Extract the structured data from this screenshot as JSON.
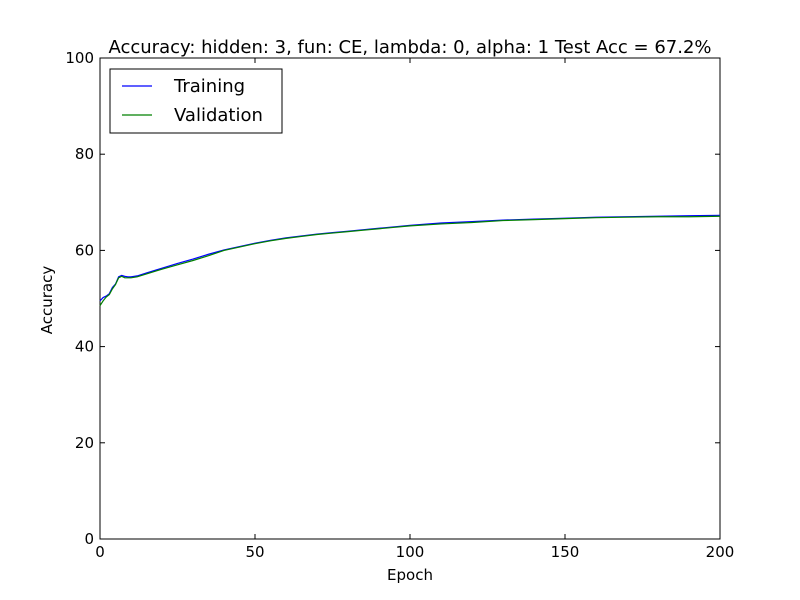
{
  "chart_data": {
    "type": "line",
    "title": "Accuracy: hidden: 3, fun: CE, lambda: 0, alpha: 1  Test Acc = 67.2%",
    "xlabel": "Epoch",
    "ylabel": "Accuracy",
    "xlim": [
      0,
      200
    ],
    "ylim": [
      0,
      100
    ],
    "xticks": [
      0,
      50,
      100,
      150,
      200
    ],
    "yticks": [
      0,
      20,
      40,
      60,
      80,
      100
    ],
    "grid": false,
    "legend_position": "top-left",
    "series": [
      {
        "name": "Training",
        "color": "#0000ff",
        "x": [
          0,
          1,
          2,
          3,
          4,
          5,
          6,
          7,
          8,
          9,
          10,
          12,
          15,
          18,
          20,
          25,
          30,
          35,
          40,
          45,
          50,
          55,
          60,
          65,
          70,
          75,
          80,
          85,
          90,
          95,
          100,
          110,
          120,
          130,
          140,
          150,
          160,
          170,
          180,
          190,
          200
        ],
        "y": [
          49.5,
          50.2,
          50.5,
          51.0,
          52.3,
          53.0,
          54.5,
          54.8,
          54.6,
          54.5,
          54.5,
          54.7,
          55.3,
          55.9,
          56.3,
          57.3,
          58.2,
          59.2,
          60.1,
          60.8,
          61.5,
          62.1,
          62.6,
          63.0,
          63.4,
          63.7,
          64.0,
          64.3,
          64.6,
          64.9,
          65.2,
          65.7,
          66.0,
          66.3,
          66.5,
          66.7,
          66.9,
          67.0,
          67.1,
          67.2,
          67.3
        ]
      },
      {
        "name": "Validation",
        "color": "#008000",
        "x": [
          0,
          1,
          2,
          3,
          4,
          5,
          6,
          7,
          8,
          9,
          10,
          12,
          15,
          18,
          20,
          25,
          30,
          35,
          40,
          45,
          50,
          55,
          60,
          65,
          70,
          75,
          80,
          85,
          90,
          95,
          100,
          110,
          120,
          130,
          140,
          150,
          160,
          170,
          180,
          190,
          200
        ],
        "y": [
          48.5,
          49.5,
          50.3,
          50.8,
          52.0,
          52.9,
          54.3,
          54.6,
          54.3,
          54.3,
          54.3,
          54.5,
          55.1,
          55.7,
          56.1,
          57.0,
          57.9,
          58.9,
          60.0,
          60.7,
          61.4,
          62.0,
          62.5,
          62.9,
          63.3,
          63.6,
          63.9,
          64.2,
          64.5,
          64.8,
          65.1,
          65.5,
          65.8,
          66.2,
          66.4,
          66.6,
          66.8,
          66.9,
          67.0,
          67.0,
          67.1
        ]
      }
    ]
  }
}
